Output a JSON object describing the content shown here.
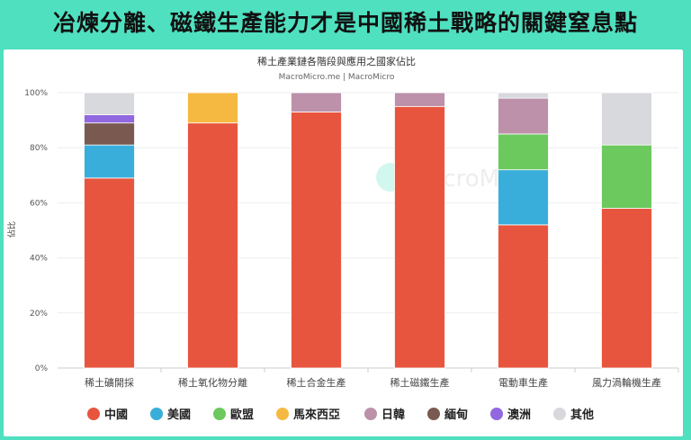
{
  "headline": "冶煉分離、磁鐵生產能力才是中國稀土戰略的關鍵窒息點",
  "chart_data": {
    "type": "bar",
    "stacked": true,
    "title": "稀土產業鏈各階段與應用之國家佔比",
    "subtitle": "MacroMicro.me | MacroMicro",
    "watermark": "MacroMicro",
    "ylabel": "佔比",
    "ylim": [
      0,
      100
    ],
    "yticks": [
      "0%",
      "20%",
      "40%",
      "60%",
      "80%",
      "100%"
    ],
    "grid": true,
    "legend_position": "bottom",
    "categories": [
      "稀土礦開採",
      "稀土氧化物分離",
      "稀土合金生產",
      "稀土磁鐵生產",
      "電動車生產",
      "風力渦輪機生產"
    ],
    "series": [
      {
        "name": "中國",
        "color": "#e8553e",
        "values": [
          69,
          89,
          93,
          95,
          52,
          58
        ]
      },
      {
        "name": "美國",
        "color": "#3aaedb",
        "values": [
          12,
          0,
          0,
          0,
          20,
          0
        ]
      },
      {
        "name": "歐盟",
        "color": "#6cc95e",
        "values": [
          0,
          0,
          0,
          0,
          13,
          23
        ]
      },
      {
        "name": "馬來西亞",
        "color": "#f5b942",
        "values": [
          0,
          11,
          0,
          0,
          0,
          0
        ]
      },
      {
        "name": "日韓",
        "color": "#bd91aa",
        "values": [
          0,
          0,
          7,
          5,
          13,
          0
        ]
      },
      {
        "name": "緬甸",
        "color": "#7a5a50",
        "values": [
          8,
          0,
          0,
          0,
          0,
          0
        ]
      },
      {
        "name": "澳洲",
        "color": "#9168e0",
        "values": [
          3,
          0,
          0,
          0,
          0,
          0
        ]
      },
      {
        "name": "其他",
        "color": "#d7d9dc",
        "values": [
          8,
          0,
          0,
          0,
          2,
          19
        ]
      }
    ]
  }
}
